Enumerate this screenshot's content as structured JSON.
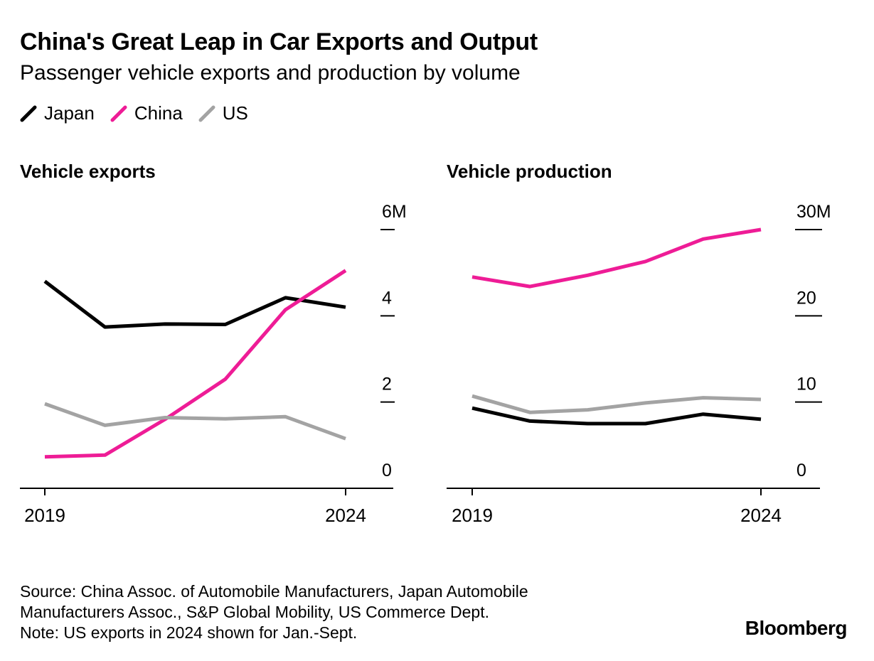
{
  "title": "China's Great Leap in Car Exports and Output",
  "subtitle": "Passenger vehicle exports and production by volume",
  "legend": [
    {
      "label": "Japan",
      "color": "#000000"
    },
    {
      "label": "China",
      "color": "#ee1c96"
    },
    {
      "label": "US",
      "color": "#a3a3a3"
    }
  ],
  "footer": {
    "source_line1": "Source: China Assoc. of Automobile Manufacturers, Japan Automobile",
    "source_line2": "Manufacturers Assoc., S&P Global Mobility, US Commerce Dept.",
    "note": "Note: US exports in 2024 shown for Jan.-Sept."
  },
  "brand": "Bloomberg",
  "chart_data": [
    {
      "type": "line",
      "title": "Vehicle exports",
      "x": [
        2019,
        2020,
        2021,
        2022,
        2023,
        2024
      ],
      "x_tick_labels": [
        "2019",
        "2024"
      ],
      "y_tick_labels": [
        "0",
        "2",
        "4",
        "6M"
      ],
      "ylim": [
        0,
        6
      ],
      "series": [
        {
          "name": "Japan",
          "color": "#000000",
          "values": [
            4.8,
            3.74,
            3.81,
            3.8,
            4.42,
            4.2
          ]
        },
        {
          "name": "China",
          "color": "#ee1c96",
          "values": [
            0.73,
            0.77,
            1.6,
            2.53,
            4.14,
            5.05
          ]
        },
        {
          "name": "US",
          "color": "#a3a3a3",
          "values": [
            1.96,
            1.46,
            1.64,
            1.61,
            1.66,
            1.15
          ]
        }
      ]
    },
    {
      "type": "line",
      "title": "Vehicle production",
      "x": [
        2019,
        2020,
        2021,
        2022,
        2023,
        2024
      ],
      "x_tick_labels": [
        "2019",
        "2024"
      ],
      "y_tick_labels": [
        "0",
        "10",
        "20",
        "30M"
      ],
      "ylim": [
        0,
        30
      ],
      "series": [
        {
          "name": "Japan",
          "color": "#000000",
          "values": [
            9.3,
            7.8,
            7.5,
            7.5,
            8.6,
            8.0
          ]
        },
        {
          "name": "China",
          "color": "#ee1c96",
          "values": [
            24.5,
            23.4,
            24.7,
            26.3,
            28.9,
            30.0
          ]
        },
        {
          "name": "US",
          "color": "#a3a3a3",
          "values": [
            10.7,
            8.8,
            9.1,
            9.9,
            10.5,
            10.3
          ]
        }
      ]
    }
  ]
}
